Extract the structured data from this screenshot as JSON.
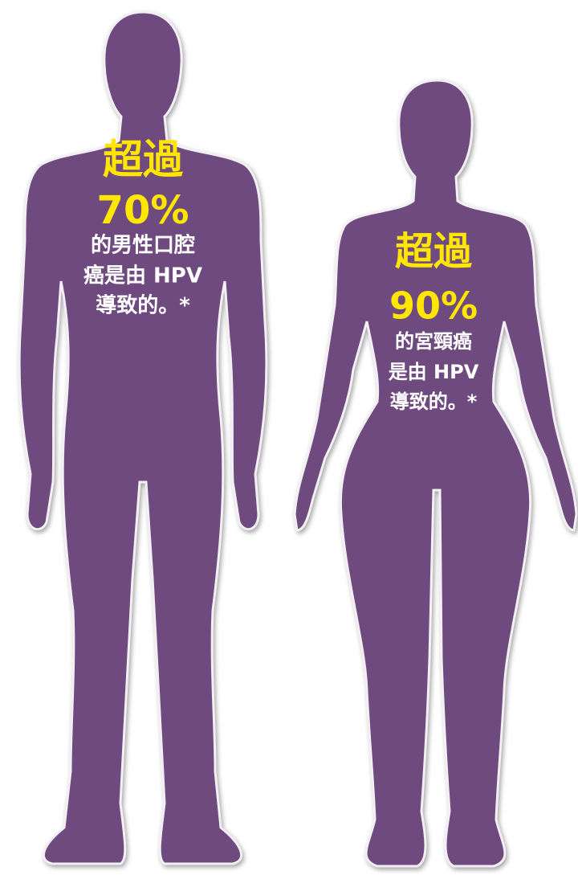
{
  "figures": [
    {
      "lead": "超過",
      "percent": "70%",
      "lines": [
        "的男性口腔",
        "癌是由 HPV",
        "導致的。*"
      ]
    },
    {
      "lead": "超過",
      "percent": "90%",
      "lines": [
        "的宮頸癌",
        "是由 HPV",
        "導致的。*"
      ]
    }
  ]
}
